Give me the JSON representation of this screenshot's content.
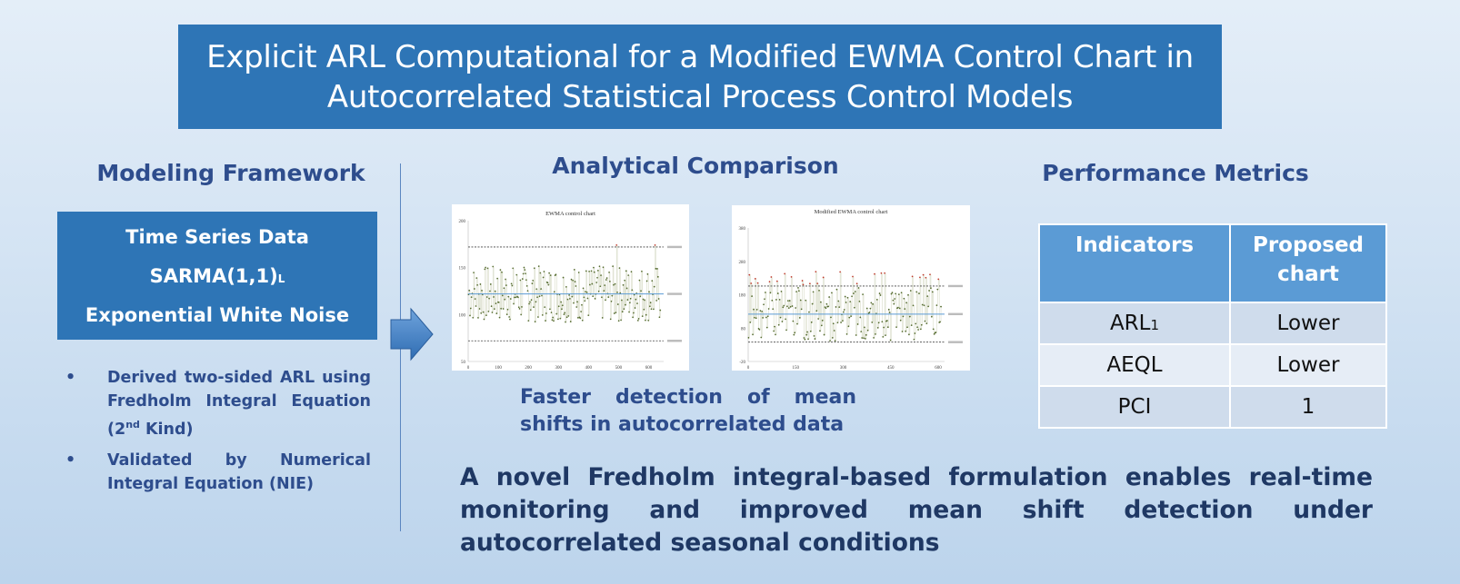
{
  "title": "Explicit ARL Computational for a Modified EWMA Control Chart in Autocorrelated Statistical Process Control Models",
  "left": {
    "heading": "Modeling Framework",
    "box": {
      "line1": "Time Series Data",
      "line2": "SARMA(1,1)",
      "line2_sub": "L",
      "line3": "Exponential White Noise"
    },
    "bullets": [
      {
        "text": "Derived two-sided ARL using Fredholm Integral Equation (2",
        "sup": "nd",
        "tail": " Kind)"
      },
      {
        "text": "Validated by Numerical Integral Equation (NIE)"
      }
    ]
  },
  "middle": {
    "heading": "Analytical Comparison",
    "caption": [
      "Faster detection of mean",
      "shifts in autocorrelated data"
    ]
  },
  "chart_data": [
    {
      "type": "line",
      "title": "EWMA control chart",
      "x_ticks": [
        "0",
        "100",
        "200",
        "300",
        "400",
        "500",
        "600"
      ],
      "y_ticks": [
        "50",
        "100",
        "150",
        "200"
      ],
      "ylim": [
        50,
        200
      ],
      "xlim": [
        0,
        650
      ],
      "control_limits": {
        "UCL": 172,
        "CL": 122,
        "LCL": 72
      },
      "colors": {
        "points": "#556b2f",
        "out_of_control": "#c0392b",
        "center": "#5b9bd5"
      }
    },
    {
      "type": "line",
      "title": "Modified EWMA control chart",
      "x_ticks": [
        "0",
        "150",
        "300",
        "450",
        "600"
      ],
      "y_ticks": [
        "-20",
        "80",
        "180",
        "280",
        "380"
      ],
      "ylim": [
        -20,
        380
      ],
      "xlim": [
        0,
        620
      ],
      "control_limits": {
        "UCL": 206,
        "CL": 122,
        "LCL": 38
      },
      "colors": {
        "points": "#556b2f",
        "out_of_control": "#c0392b",
        "center": "#5b9bd5"
      }
    }
  ],
  "right": {
    "heading": "Performance Metrics",
    "table": {
      "headers": [
        "Indicators",
        "Proposed chart"
      ],
      "rows": [
        {
          "indicator": "ARL",
          "sub": "1",
          "value": "Lower"
        },
        {
          "indicator": "AEQL",
          "sub": "",
          "value": "Lower"
        },
        {
          "indicator": "PCI",
          "sub": "",
          "value": "1"
        }
      ]
    }
  },
  "conclusion": "A novel Fredholm integral-based formulation enables real-time monitoring and improved mean shift detection under autocorrelated seasonal conditions",
  "colors": {
    "title_bg": "#2e75b6",
    "heading": "#2e4d8d",
    "table_header": "#5b9bd5",
    "conclusion": "#1f3864"
  }
}
